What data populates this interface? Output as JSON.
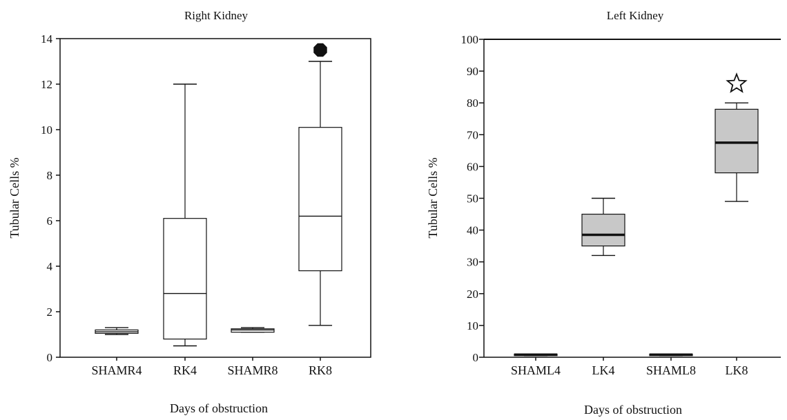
{
  "chart_data": [
    {
      "type": "box",
      "title": "Right Kidney",
      "xlabel": "Days of obstruction",
      "ylabel": "Tubular Cells %",
      "ylim": [
        0,
        14
      ],
      "yticks": [
        0,
        2,
        4,
        6,
        8,
        10,
        12,
        14
      ],
      "box_fill": "#ffffff",
      "categories": [
        "SHAMR4",
        "RK4",
        "SHAMR8",
        "RK8"
      ],
      "boxes": [
        {
          "category": "SHAMR4",
          "min": 1.0,
          "q1": 1.05,
          "median": 1.12,
          "q3": 1.2,
          "max": 1.3
        },
        {
          "category": "RK4",
          "min": 0.5,
          "q1": 0.8,
          "median": 2.8,
          "q3": 6.1,
          "max": 12.0
        },
        {
          "category": "SHAMR8",
          "min": 1.1,
          "q1": 1.1,
          "median": 1.2,
          "q3": 1.25,
          "max": 1.3
        },
        {
          "category": "RK8",
          "min": 1.4,
          "q1": 3.8,
          "median": 6.2,
          "q3": 10.1,
          "max": 13.0
        }
      ],
      "markers": [
        {
          "category": "RK8",
          "y": 13.5,
          "symbol": "filled-octagon"
        }
      ]
    },
    {
      "type": "box",
      "title": "Left Kidney",
      "xlabel": "Days of obstruction",
      "ylabel": "Tubular Cells %",
      "ylim": [
        0,
        100
      ],
      "yticks": [
        0,
        10,
        20,
        30,
        40,
        50,
        60,
        70,
        80,
        90,
        100
      ],
      "box_fill": "#c8c8c8",
      "categories": [
        "SHAML4",
        "LK4",
        "SHAML8",
        "LK8"
      ],
      "boxes": [
        {
          "category": "SHAML4",
          "min": 0.5,
          "q1": 0.5,
          "median": 0.8,
          "q3": 1.0,
          "max": 1.0
        },
        {
          "category": "LK4",
          "min": 32,
          "q1": 35,
          "median": 38.5,
          "q3": 45,
          "max": 50
        },
        {
          "category": "SHAML8",
          "min": 0.5,
          "q1": 0.5,
          "median": 0.8,
          "q3": 1.0,
          "max": 1.0
        },
        {
          "category": "LK8",
          "min": 49,
          "q1": 58,
          "median": 67.5,
          "q3": 78,
          "max": 80
        }
      ],
      "markers": [
        {
          "category": "LK8",
          "y": 86,
          "symbol": "star"
        }
      ]
    }
  ]
}
